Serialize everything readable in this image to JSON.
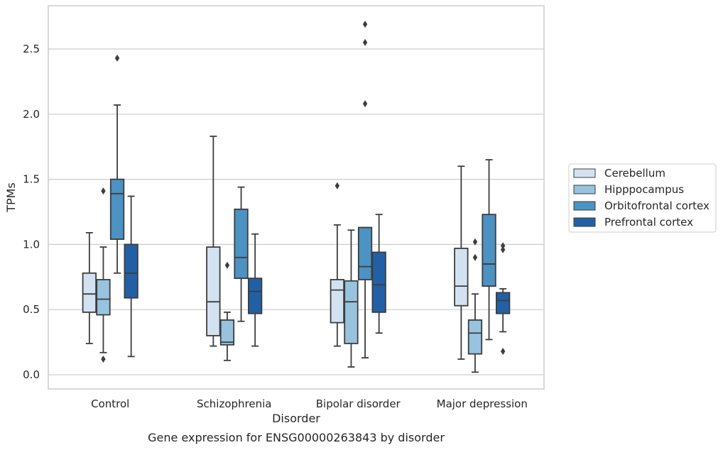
{
  "chart_data": {
    "type": "box",
    "title": "Gene expression for ENSG00000263843 by disorder",
    "xlabel": "Disorder",
    "ylabel": "TPMs",
    "ylim": [
      -0.1,
      2.82
    ],
    "yticks": [
      "0.0",
      "0.5",
      "1.0",
      "1.5",
      "2.0",
      "2.5"
    ],
    "grid": "horizontal",
    "legend_position": "right",
    "categories": [
      "Control",
      "Schizophrenia",
      "Bipolar disorder",
      "Major depression"
    ],
    "series": [
      {
        "name": "Cerebellum",
        "color": "#d3e2f1",
        "boxes": [
          {
            "whislo": 0.24,
            "q1": 0.48,
            "med": 0.62,
            "q3": 0.78,
            "whishi": 1.09,
            "fliers": []
          },
          {
            "whislo": 0.22,
            "q1": 0.3,
            "med": 0.56,
            "q3": 0.98,
            "whishi": 1.83,
            "fliers": []
          },
          {
            "whislo": 0.22,
            "q1": 0.4,
            "med": 0.65,
            "q3": 0.73,
            "whishi": 1.15,
            "fliers": [
              1.45
            ]
          },
          {
            "whislo": 0.12,
            "q1": 0.53,
            "med": 0.68,
            "q3": 0.97,
            "whishi": 1.6,
            "fliers": []
          }
        ]
      },
      {
        "name": "Hipppocampus",
        "color": "#97c3de",
        "boxes": [
          {
            "whislo": 0.17,
            "q1": 0.46,
            "med": 0.58,
            "q3": 0.73,
            "whishi": 0.98,
            "fliers": [
              1.41,
              0.12
            ]
          },
          {
            "whislo": 0.11,
            "q1": 0.23,
            "med": 0.25,
            "q3": 0.42,
            "whishi": 0.48,
            "fliers": [
              0.84
            ]
          },
          {
            "whislo": 0.06,
            "q1": 0.24,
            "med": 0.56,
            "q3": 0.72,
            "whishi": 1.11,
            "fliers": []
          },
          {
            "whislo": 0.02,
            "q1": 0.16,
            "med": 0.32,
            "q3": 0.42,
            "whishi": 0.62,
            "fliers": [
              1.02,
              0.9
            ]
          }
        ]
      },
      {
        "name": "Orbitofrontal cortex",
        "color": "#4c92c3",
        "boxes": [
          {
            "whislo": 0.78,
            "q1": 1.04,
            "med": 1.39,
            "q3": 1.5,
            "whishi": 2.07,
            "fliers": [
              2.43
            ]
          },
          {
            "whislo": 0.41,
            "q1": 0.74,
            "med": 0.9,
            "q3": 1.27,
            "whishi": 1.44,
            "fliers": []
          },
          {
            "whislo": 0.13,
            "q1": 0.73,
            "med": 0.83,
            "q3": 1.13,
            "whishi": 1.13,
            "fliers": [
              2.08,
              2.55,
              2.69
            ]
          },
          {
            "whislo": 0.27,
            "q1": 0.68,
            "med": 0.85,
            "q3": 1.23,
            "whishi": 1.65,
            "fliers": []
          }
        ]
      },
      {
        "name": "Prefrontal cortex",
        "color": "#2260a6",
        "boxes": [
          {
            "whislo": 0.14,
            "q1": 0.59,
            "med": 0.78,
            "q3": 1.0,
            "whishi": 1.37,
            "fliers": []
          },
          {
            "whislo": 0.22,
            "q1": 0.47,
            "med": 0.64,
            "q3": 0.74,
            "whishi": 1.08,
            "fliers": []
          },
          {
            "whislo": 0.32,
            "q1": 0.48,
            "med": 0.69,
            "q3": 0.94,
            "whishi": 1.23,
            "fliers": []
          },
          {
            "whislo": 0.33,
            "q1": 0.47,
            "med": 0.57,
            "q3": 0.63,
            "whishi": 0.66,
            "fliers": [
              0.99,
              0.96,
              0.18
            ]
          }
        ]
      }
    ]
  }
}
